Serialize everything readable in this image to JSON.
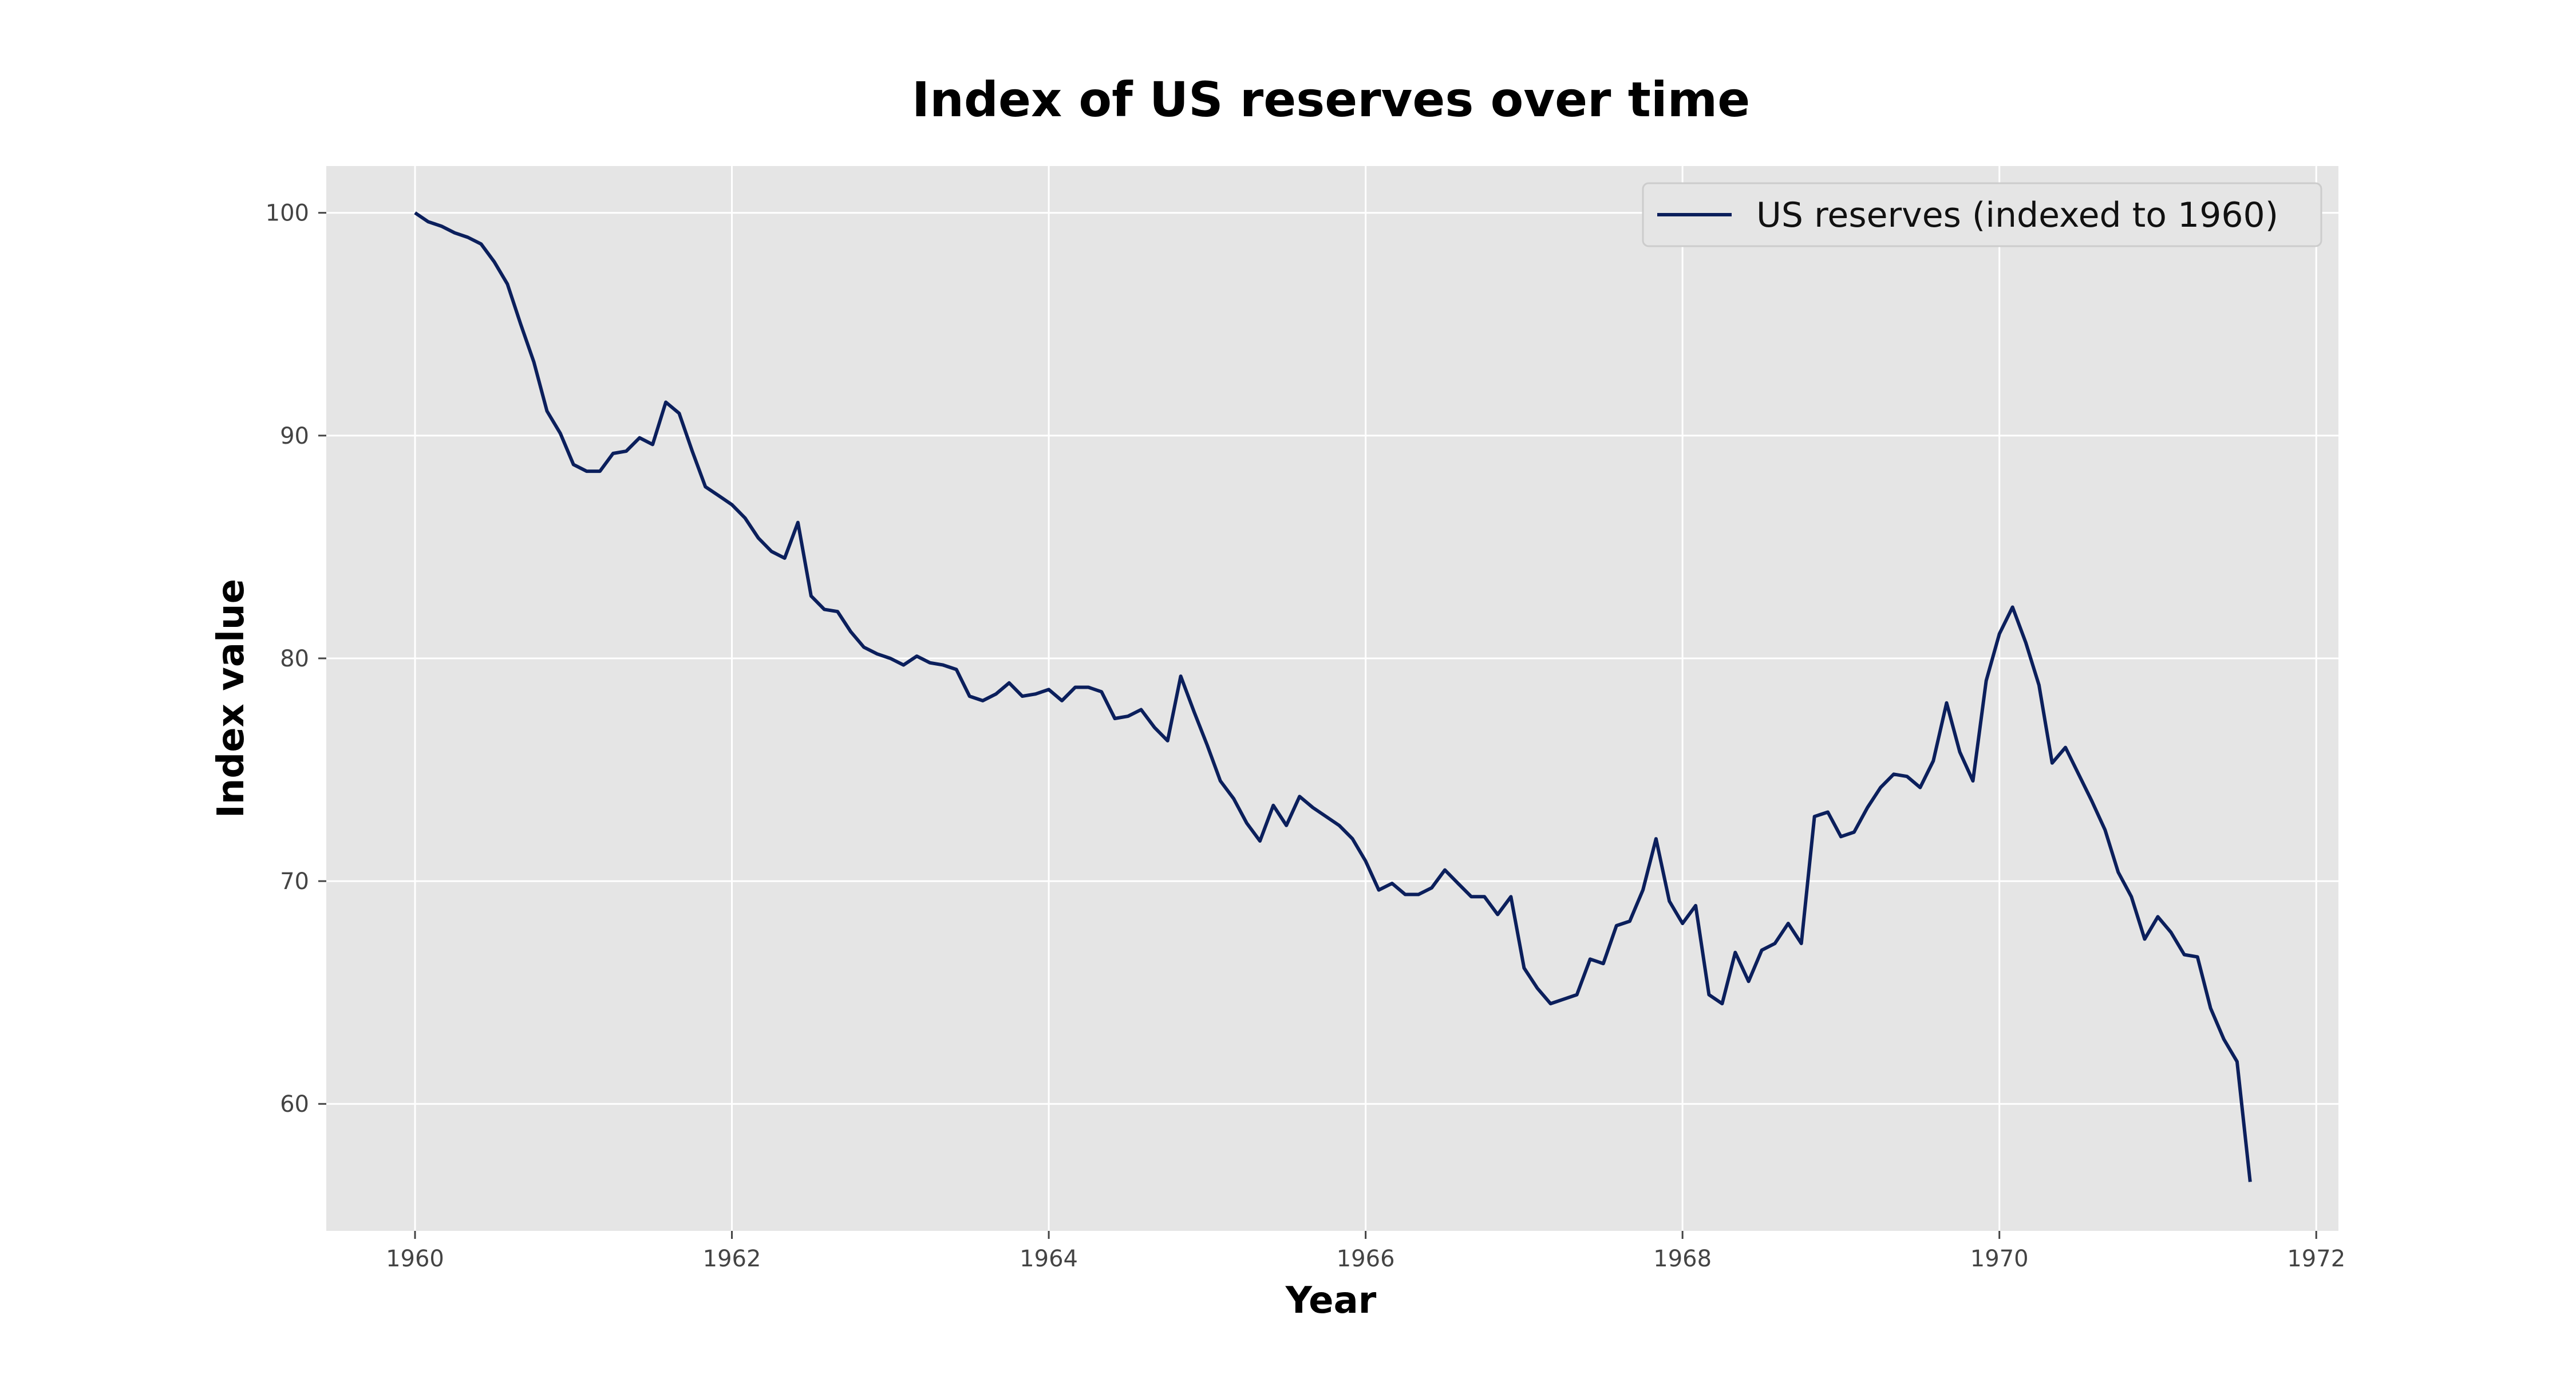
{
  "chart_data": {
    "type": "line",
    "title": "Index of US reserves over time",
    "xlabel": "Year",
    "ylabel": "Index value",
    "xlim": [
      1959.44,
      1972.14
    ],
    "ylim": [
      54.3,
      102.1
    ],
    "xticks": [
      1960,
      1962,
      1964,
      1966,
      1968,
      1970,
      1972
    ],
    "yticks": [
      60,
      70,
      80,
      90,
      100
    ],
    "grid": true,
    "legend": "top-right",
    "series": [
      {
        "name": "US reserves (indexed to 1960)",
        "color": "#0b1f5c",
        "x": [
          1960.0,
          1960.083,
          1960.167,
          1960.25,
          1960.333,
          1960.417,
          1960.5,
          1960.583,
          1960.667,
          1960.75,
          1960.833,
          1960.917,
          1961.0,
          1961.083,
          1961.167,
          1961.25,
          1961.333,
          1961.417,
          1961.5,
          1961.583,
          1961.667,
          1961.75,
          1961.833,
          1961.917,
          1962.0,
          1962.083,
          1962.167,
          1962.25,
          1962.333,
          1962.417,
          1962.5,
          1962.583,
          1962.667,
          1962.75,
          1962.833,
          1962.917,
          1963.0,
          1963.083,
          1963.167,
          1963.25,
          1963.333,
          1963.417,
          1963.5,
          1963.583,
          1963.667,
          1963.75,
          1963.833,
          1963.917,
          1964.0,
          1964.083,
          1964.167,
          1964.25,
          1964.333,
          1964.417,
          1964.5,
          1964.583,
          1964.667,
          1964.75,
          1964.833,
          1964.917,
          1965.0,
          1965.083,
          1965.167,
          1965.25,
          1965.333,
          1965.417,
          1965.5,
          1965.583,
          1965.667,
          1965.75,
          1965.833,
          1965.917,
          1966.0,
          1966.083,
          1966.167,
          1966.25,
          1966.333,
          1966.417,
          1966.5,
          1966.583,
          1966.667,
          1966.75,
          1966.833,
          1966.917,
          1967.0,
          1967.083,
          1967.167,
          1967.25,
          1967.333,
          1967.417,
          1967.5,
          1967.583,
          1967.667,
          1967.75,
          1967.833,
          1967.917,
          1968.0,
          1968.083,
          1968.167,
          1968.25,
          1968.333,
          1968.417,
          1968.5,
          1968.583,
          1968.667,
          1968.75,
          1968.833,
          1968.917,
          1969.0,
          1969.083,
          1969.167,
          1969.25,
          1969.333,
          1969.417,
          1969.5,
          1969.583,
          1969.667,
          1969.75,
          1969.833,
          1969.917,
          1970.0,
          1970.083,
          1970.167,
          1970.25,
          1970.333,
          1970.417,
          1970.5,
          1970.583,
          1970.667,
          1970.75,
          1970.833,
          1970.917,
          1971.0,
          1971.083,
          1971.167,
          1971.25,
          1971.333,
          1971.417,
          1971.5,
          1971.583
        ],
        "y": [
          100.0,
          99.6,
          99.4,
          99.1,
          98.9,
          98.6,
          97.8,
          96.8,
          95.0,
          93.3,
          91.1,
          90.1,
          88.7,
          88.4,
          88.4,
          89.2,
          89.3,
          89.9,
          89.6,
          91.5,
          91.0,
          89.3,
          87.7,
          87.3,
          86.9,
          86.3,
          85.4,
          84.8,
          84.5,
          86.1,
          82.8,
          82.2,
          82.1,
          81.2,
          80.5,
          80.2,
          80.0,
          79.7,
          80.1,
          79.8,
          79.7,
          79.5,
          78.3,
          78.1,
          78.4,
          78.9,
          78.3,
          78.4,
          78.6,
          78.1,
          78.7,
          78.7,
          78.5,
          77.3,
          77.4,
          77.7,
          76.9,
          76.3,
          79.2,
          77.6,
          76.1,
          74.5,
          73.7,
          72.6,
          71.8,
          73.4,
          72.5,
          73.8,
          73.3,
          72.9,
          72.5,
          71.9,
          70.9,
          69.6,
          69.9,
          69.4,
          69.4,
          69.7,
          70.5,
          69.9,
          69.3,
          69.3,
          68.5,
          69.3,
          66.1,
          65.2,
          64.5,
          64.7,
          64.9,
          66.5,
          66.3,
          68.0,
          68.2,
          69.6,
          71.9,
          69.1,
          68.1,
          68.9,
          64.9,
          64.5,
          66.8,
          65.5,
          66.9,
          67.2,
          68.1,
          67.2,
          72.9,
          73.1,
          72.0,
          72.2,
          73.3,
          74.2,
          74.8,
          74.7,
          74.2,
          75.4,
          78.0,
          75.8,
          74.5,
          79.0,
          81.1,
          82.3,
          80.7,
          78.8,
          75.3,
          76.0,
          74.8,
          73.6,
          72.3,
          70.4,
          69.3,
          67.4,
          68.4,
          67.7,
          66.7,
          66.6,
          64.3,
          62.9,
          61.9,
          56.5
        ]
      }
    ]
  }
}
